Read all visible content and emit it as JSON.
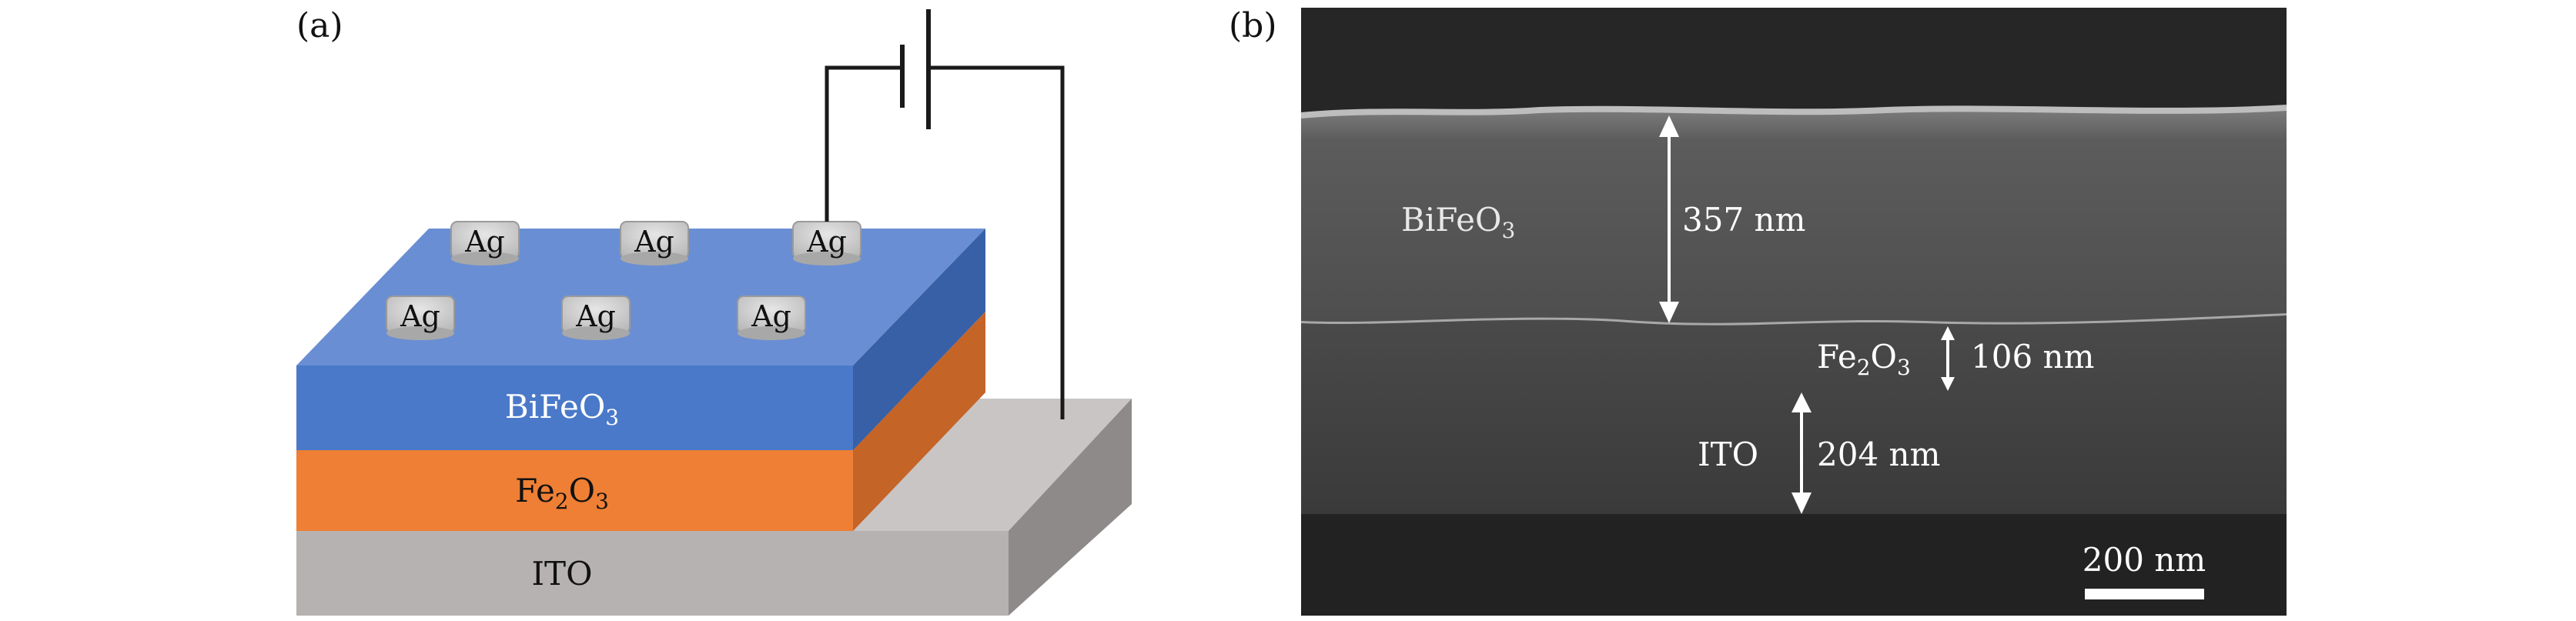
{
  "panels": {
    "a": {
      "label": "(a)",
      "electrodes": [
        "Ag",
        "Ag",
        "Ag",
        "Ag",
        "Ag",
        "Ag"
      ],
      "layers": {
        "bifeo3": {
          "base": "BiFeO",
          "sub": "3"
        },
        "fe2o3": {
          "pre": "Fe",
          "sub1": "2",
          "mid": "O",
          "sub2": "3"
        },
        "ito": "ITO"
      },
      "colors": {
        "bifeo3_front": "#4a79c9",
        "bifeo3_top": "#6b8fd4",
        "bifeo3_side": "#3760a6",
        "fe2o3_front": "#ee7f35",
        "fe2o3_side": "#c96628",
        "ito_front": "#b8b4b4",
        "ito_top": "#cbc7c7",
        "ito_side": "#8f8b8b",
        "electrode": "#d2d2d2"
      }
    },
    "b": {
      "label": "(b)",
      "layers": {
        "bifeo3": {
          "base": "BiFeO",
          "sub": "3"
        },
        "fe2o3": {
          "pre": "Fe",
          "sub1": "2",
          "mid": "O",
          "sub2": "3"
        },
        "ito": "ITO"
      },
      "thickness": {
        "bifeo3": "357 nm",
        "fe2o3": "106 nm",
        "ito": "204 nm"
      },
      "scale_bar": "200 nm"
    }
  }
}
